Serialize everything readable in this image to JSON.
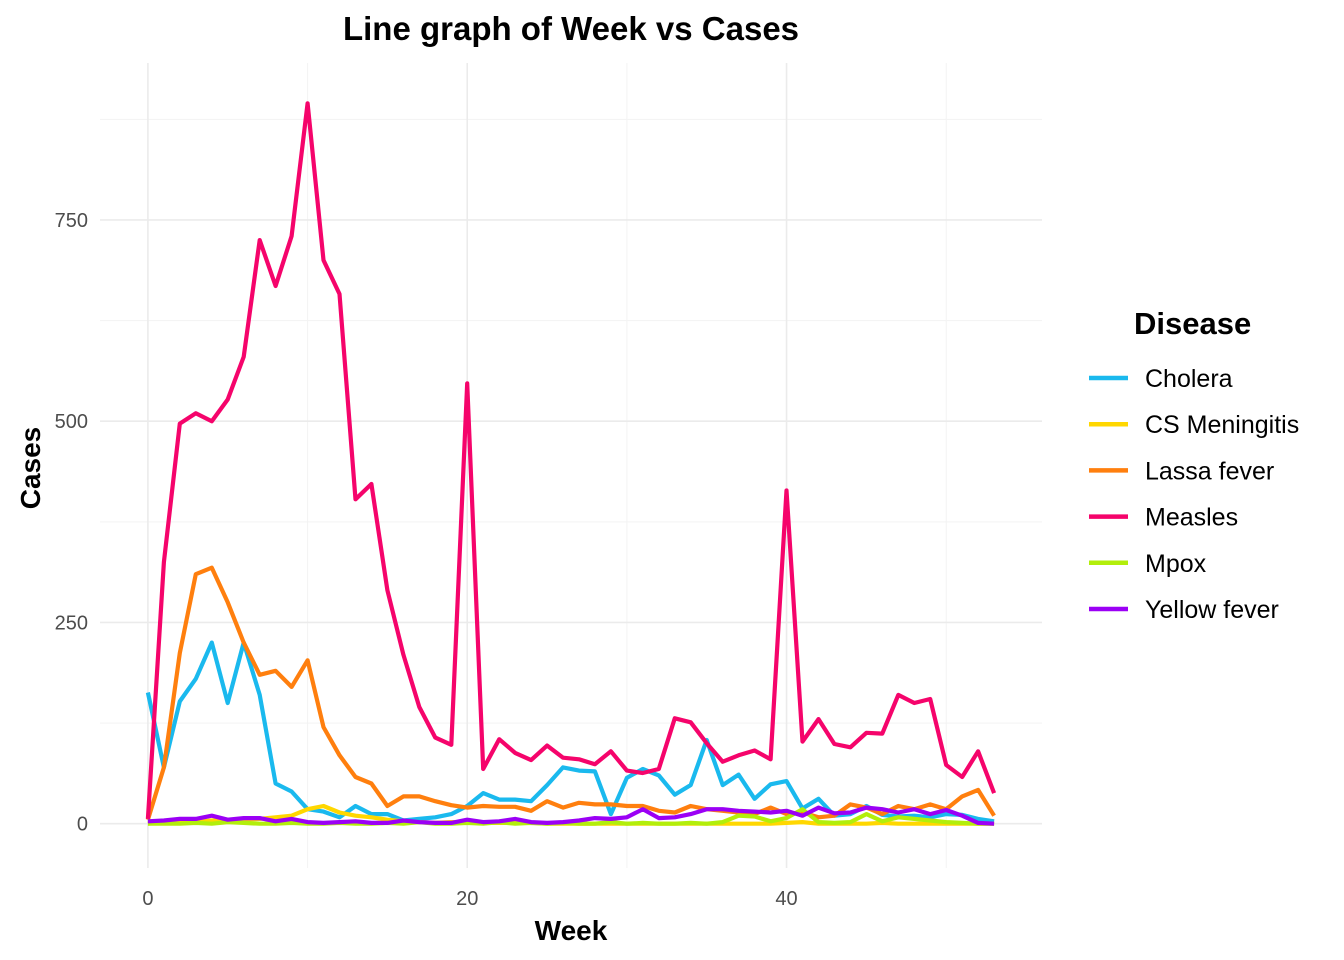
{
  "chart_data": {
    "type": "line",
    "title": "Line graph of Week vs Cases",
    "xlabel": "Week",
    "ylabel": "Cases",
    "xlim": [
      -3,
      56
    ],
    "ylim": [
      -55,
      945
    ],
    "x_ticks": [
      0,
      20,
      40
    ],
    "y_ticks": [
      0,
      250,
      500,
      750
    ],
    "legend_title": "Disease",
    "legend_position": "right",
    "grid": true,
    "x": [
      0,
      1,
      2,
      3,
      4,
      5,
      6,
      7,
      8,
      9,
      10,
      11,
      12,
      13,
      14,
      15,
      16,
      17,
      18,
      19,
      20,
      21,
      22,
      23,
      24,
      25,
      26,
      27,
      28,
      29,
      30,
      31,
      32,
      33,
      34,
      35,
      36,
      37,
      38,
      39,
      40,
      41,
      42,
      43,
      44,
      45,
      46,
      47,
      48,
      49,
      50,
      51,
      52,
      53
    ],
    "series": [
      {
        "name": "Cholera",
        "color": "#1ab9ee",
        "values": [
          163,
          70,
          152,
          180,
          225,
          150,
          225,
          160,
          50,
          40,
          18,
          15,
          8,
          22,
          12,
          12,
          4,
          6,
          8,
          12,
          22,
          38,
          30,
          30,
          28,
          48,
          70,
          66,
          65,
          12,
          57,
          68,
          60,
          36,
          48,
          104,
          48,
          61,
          31,
          49,
          53,
          19,
          31,
          10,
          12,
          22,
          11,
          9,
          10,
          8,
          12,
          11,
          6,
          3
        ]
      },
      {
        "name": "CS Meningitis",
        "color": "#ffd700",
        "values": [
          0,
          2,
          3,
          2,
          4,
          5,
          5,
          6,
          8,
          10,
          18,
          22,
          14,
          10,
          8,
          5,
          3,
          2,
          1,
          2,
          2,
          1,
          1,
          1,
          1,
          0,
          0,
          0,
          0,
          0,
          0,
          0,
          0,
          0,
          0,
          0,
          0,
          0,
          0,
          0,
          1,
          2,
          0,
          0,
          0,
          0,
          1,
          0,
          0,
          0,
          0,
          0,
          0,
          0
        ]
      },
      {
        "name": "Lassa fever",
        "color": "#ff7f0e",
        "values": [
          5,
          70,
          212,
          310,
          318,
          275,
          225,
          185,
          190,
          170,
          203,
          120,
          85,
          58,
          50,
          22,
          34,
          34,
          28,
          23,
          20,
          22,
          21,
          21,
          16,
          28,
          20,
          26,
          24,
          24,
          22,
          22,
          16,
          14,
          22,
          18,
          16,
          14,
          12,
          20,
          12,
          14,
          8,
          10,
          24,
          20,
          12,
          22,
          18,
          24,
          18,
          34,
          42,
          10
        ]
      },
      {
        "name": "Measles",
        "color": "#f5046b",
        "values": [
          6,
          325,
          497,
          510,
          500,
          527,
          580,
          725,
          668,
          730,
          895,
          700,
          658,
          403,
          422,
          290,
          210,
          145,
          107,
          98,
          547,
          68,
          105,
          88,
          79,
          97,
          82,
          80,
          74,
          90,
          66,
          63,
          68,
          131,
          126,
          100,
          77,
          85,
          91,
          80,
          414,
          102,
          130,
          99,
          95,
          113,
          112,
          160,
          150,
          155,
          73,
          58,
          90,
          38
        ]
      },
      {
        "name": "Mpox",
        "color": "#b2ee0b",
        "values": [
          0,
          0,
          0,
          1,
          0,
          2,
          1,
          0,
          0,
          1,
          0,
          0,
          1,
          0,
          0,
          1,
          0,
          2,
          0,
          0,
          1,
          0,
          2,
          0,
          1,
          0,
          1,
          0,
          0,
          2,
          0,
          1,
          0,
          0,
          1,
          0,
          2,
          10,
          9,
          3,
          7,
          18,
          2,
          1,
          2,
          12,
          3,
          8,
          6,
          4,
          2,
          1,
          0,
          0
        ]
      },
      {
        "name": "Yellow fever",
        "color": "#9b00f5",
        "values": [
          3,
          4,
          6,
          6,
          10,
          5,
          7,
          7,
          3,
          6,
          2,
          1,
          2,
          3,
          1,
          1,
          4,
          2,
          1,
          1,
          5,
          2,
          3,
          6,
          2,
          1,
          2,
          4,
          7,
          6,
          8,
          18,
          7,
          8,
          12,
          18,
          18,
          16,
          15,
          14,
          16,
          10,
          20,
          13,
          14,
          20,
          18,
          14,
          18,
          12,
          17,
          10,
          1,
          0
        ]
      }
    ]
  }
}
